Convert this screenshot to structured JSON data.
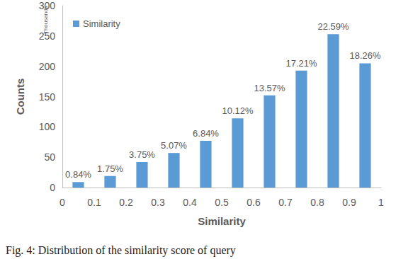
{
  "chart_data": {
    "type": "histogram",
    "series": [
      {
        "name": "Similarity",
        "color": "#5b9bd5",
        "values": [
          9,
          19,
          42,
          57,
          77,
          114,
          152,
          193,
          253,
          205
        ]
      }
    ],
    "bins": [
      0,
      0.1,
      0.2,
      0.3,
      0.4,
      0.5,
      0.6,
      0.7,
      0.8,
      0.9,
      1
    ],
    "bar_labels": [
      "0.84%",
      "1.75%",
      "3.75%",
      "5.07%",
      "6.84%",
      "10.12%",
      "13.57%",
      "17.21%",
      "22.59%",
      "18.26%"
    ],
    "x_label": "Similarity",
    "y_label": "Counts",
    "y_unit": "Thousands",
    "caption": "Fig. 4: Distribution of the similarity score of query",
    "xlim": [
      0,
      1
    ],
    "xticks": [
      0,
      0.1,
      0.2,
      0.3,
      0.4,
      0.5,
      0.6,
      0.7,
      0.8,
      0.9,
      1
    ],
    "ylim": [
      0,
      300
    ],
    "yticks": [
      0,
      50,
      100,
      150,
      200,
      250,
      300
    ],
    "grid": false,
    "legend": "top-left"
  }
}
